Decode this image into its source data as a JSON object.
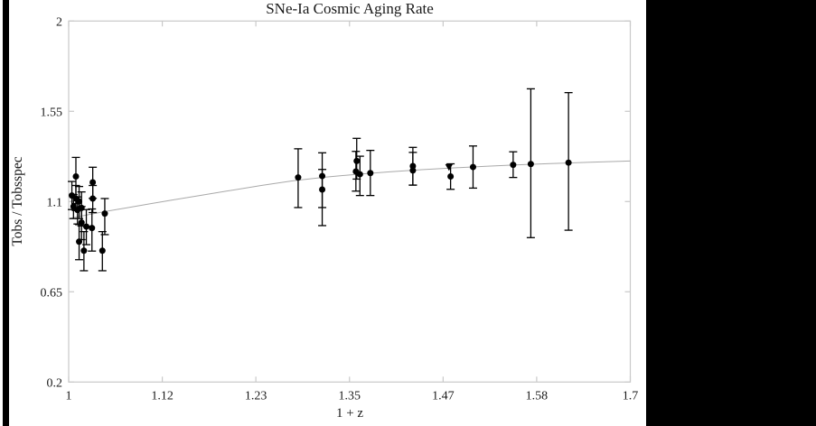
{
  "colors": {
    "background": "#ffffff",
    "side_panels": "#000000",
    "frame": "#c9c9c9",
    "curve": "#a9a9a9",
    "marker": "#000000",
    "text": "#1a1a1a"
  },
  "chart_data": {
    "type": "scatter",
    "title": "SNe-Ia Cosmic Aging Rate",
    "xlabel": "1 + z",
    "ylabel": "Tobs / Tobsspec",
    "xlim": [
      1.0,
      1.7
    ],
    "ylim": [
      0.2,
      2.0
    ],
    "grid": false,
    "legend": "none",
    "x_ticks": {
      "values": [
        1.0,
        1.1167,
        1.2333,
        1.35,
        1.4667,
        1.5833,
        1.7
      ],
      "labels": [
        "1",
        "1.12",
        "1.23",
        "1.35",
        "1.47",
        "1.58",
        "1.7"
      ]
    },
    "y_ticks": {
      "values": [
        0.2,
        0.65,
        1.1,
        1.55,
        2.0
      ],
      "labels": [
        "0.2",
        "0.65",
        "1.1",
        "1.55",
        "2"
      ]
    },
    "curve": {
      "name": "aging-rate-model-curve",
      "points": [
        [
          1.0,
          1.015
        ],
        [
          1.02,
          1.031
        ],
        [
          1.045,
          1.05
        ],
        [
          1.07,
          1.067
        ],
        [
          1.1,
          1.088
        ],
        [
          1.13,
          1.108
        ],
        [
          1.16,
          1.128
        ],
        [
          1.2,
          1.154
        ],
        [
          1.24,
          1.18
        ],
        [
          1.28,
          1.204
        ],
        [
          1.32,
          1.222
        ],
        [
          1.36,
          1.236
        ],
        [
          1.4,
          1.248
        ],
        [
          1.44,
          1.259
        ],
        [
          1.48,
          1.268
        ],
        [
          1.52,
          1.276
        ],
        [
          1.56,
          1.283
        ],
        [
          1.6,
          1.289
        ],
        [
          1.65,
          1.296
        ],
        [
          1.7,
          1.302
        ]
      ]
    },
    "points": [
      {
        "x": 1.009,
        "y": 1.225,
        "err_lo": 0.135,
        "err_hi": 0.095
      },
      {
        "x": 1.03,
        "y": 1.196,
        "err_lo": 0.08,
        "err_hi": 0.075
      },
      {
        "x": 1.004,
        "y": 1.13,
        "err_lo": 0.07,
        "err_hi": 0.07
      },
      {
        "x": 1.009,
        "y": 1.115,
        "err_lo": 0.06,
        "err_hi": 0.065
      },
      {
        "x": 1.013,
        "y": 1.1,
        "err_lo": 0.085,
        "err_hi": 0.075
      },
      {
        "x": 1.03,
        "y": 1.115,
        "err_lo": 0.07,
        "err_hi": 0.065
      },
      {
        "x": 1.006,
        "y": 1.075,
        "err_lo": 0.06,
        "err_hi": 0.06
      },
      {
        "x": 1.011,
        "y": 1.058,
        "err_lo": 0.07,
        "err_hi": 0.065
      },
      {
        "x": 1.016,
        "y": 1.068,
        "err_lo": 0.09,
        "err_hi": 0.08
      },
      {
        "x": 1.045,
        "y": 1.04,
        "err_lo": 0.105,
        "err_hi": 0.075
      },
      {
        "x": 1.016,
        "y": 0.995,
        "err_lo": 0.085,
        "err_hi": 0.08
      },
      {
        "x": 1.022,
        "y": 0.975,
        "err_lo": 0.09,
        "err_hi": 0.085
      },
      {
        "x": 1.029,
        "y": 0.968,
        "err_lo": 0.115,
        "err_hi": 0.095
      },
      {
        "x": 1.013,
        "y": 0.9,
        "err_lo": 0.09,
        "err_hi": 0.085
      },
      {
        "x": 1.019,
        "y": 0.855,
        "err_lo": 0.1,
        "err_hi": 0.095
      },
      {
        "x": 1.042,
        "y": 0.855,
        "err_lo": 0.1,
        "err_hi": 0.095
      },
      {
        "x": 1.286,
        "y": 1.22,
        "err_lo": 0.15,
        "err_hi": 0.143
      },
      {
        "x": 1.316,
        "y": 1.227,
        "err_lo": 0.157,
        "err_hi": 0.116
      },
      {
        "x": 1.316,
        "y": 1.16,
        "err_lo": 0.18,
        "err_hi": 0.1
      },
      {
        "x": 1.359,
        "y": 1.302,
        "err_lo": 0.09,
        "err_hi": 0.113
      },
      {
        "x": 1.358,
        "y": 1.25,
        "err_lo": 0.098,
        "err_hi": 0.1
      },
      {
        "x": 1.363,
        "y": 1.236,
        "err_lo": 0.106,
        "err_hi": 0.09
      },
      {
        "x": 1.376,
        "y": 1.242,
        "err_lo": 0.112,
        "err_hi": 0.113
      },
      {
        "x": 1.429,
        "y": 1.277,
        "err_lo": 0.095,
        "err_hi": 0.093
      },
      {
        "x": 1.429,
        "y": 1.255,
        "err_lo": 0.073,
        "err_hi": 0.09
      },
      {
        "x": 1.474,
        "y": 1.272,
        "err_lo": 0.0,
        "err_hi": 0.015,
        "marker": "triangle-down"
      },
      {
        "x": 1.476,
        "y": 1.225,
        "err_lo": 0.064,
        "err_hi": 0.063
      },
      {
        "x": 1.504,
        "y": 1.272,
        "err_lo": 0.105,
        "err_hi": 0.105
      },
      {
        "x": 1.554,
        "y": 1.283,
        "err_lo": 0.063,
        "err_hi": 0.065
      },
      {
        "x": 1.576,
        "y": 1.287,
        "err_lo": 0.367,
        "err_hi": 0.375
      },
      {
        "x": 1.623,
        "y": 1.294,
        "err_lo": 0.337,
        "err_hi": 0.349
      }
    ]
  }
}
